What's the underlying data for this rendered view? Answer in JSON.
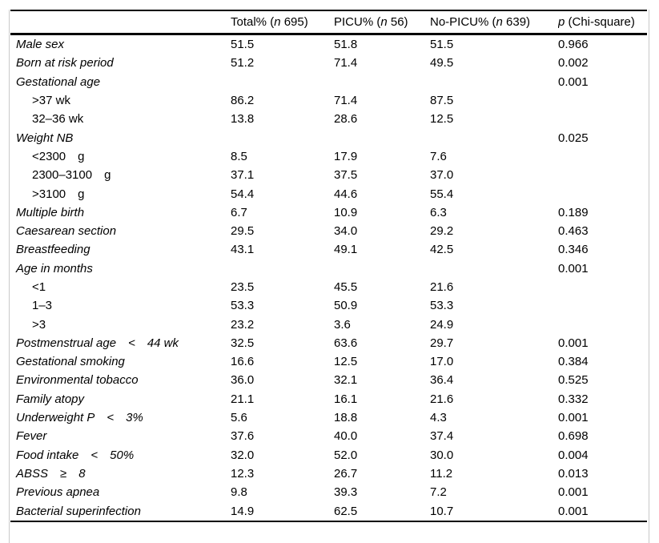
{
  "table": {
    "columns": [
      {
        "key": "total",
        "pre": "Total% (",
        "it": "n",
        "post": " 695)"
      },
      {
        "key": "picu",
        "pre": "PICU% (",
        "it": "n",
        "post": " 56)"
      },
      {
        "key": "nopicu",
        "pre": "No-PICU% (",
        "it": "n",
        "post": " 639)"
      },
      {
        "key": "p",
        "pre": "",
        "it": "p",
        "post": " (Chi-square)"
      }
    ],
    "rows": [
      {
        "label": "Male sex",
        "style": "cat",
        "values": [
          "51.5",
          "51.8",
          "51.5",
          "0.966"
        ]
      },
      {
        "label": "Born at risk period",
        "style": "cat",
        "values": [
          "51.2",
          "71.4",
          "49.5",
          "0.002"
        ]
      },
      {
        "label": "Gestational age",
        "style": "cat",
        "values": [
          "",
          "",
          "",
          "0.001"
        ]
      },
      {
        "label": ">37 wk",
        "style": "sub",
        "values": [
          "86.2",
          "71.4",
          "87.5",
          ""
        ]
      },
      {
        "label": "32–36 wk",
        "style": "sub",
        "values": [
          "13.8",
          "28.6",
          "12.5",
          ""
        ]
      },
      {
        "label": "Weight NB",
        "style": "cat",
        "values": [
          "",
          "",
          "",
          "0.025"
        ]
      },
      {
        "label": "<2300 g",
        "style": "sub",
        "values": [
          "8.5",
          "17.9",
          "7.6",
          ""
        ]
      },
      {
        "label": "2300–3100 g",
        "style": "sub",
        "values": [
          "37.1",
          "37.5",
          "37.0",
          ""
        ]
      },
      {
        "label": ">3100 g",
        "style": "sub",
        "values": [
          "54.4",
          "44.6",
          "55.4",
          ""
        ]
      },
      {
        "label": "Multiple birth",
        "style": "cat",
        "values": [
          "6.7",
          "10.9",
          "6.3",
          "0.189"
        ]
      },
      {
        "label": "Caesarean section",
        "style": "cat",
        "values": [
          "29.5",
          "34.0",
          "29.2",
          "0.463"
        ]
      },
      {
        "label": "Breastfeeding",
        "style": "cat",
        "values": [
          "43.1",
          "49.1",
          "42.5",
          "0.346"
        ]
      },
      {
        "label": "Age in months",
        "style": "cat",
        "values": [
          "",
          "",
          "",
          "0.001"
        ]
      },
      {
        "label": "<1",
        "style": "sub",
        "values": [
          "23.5",
          "45.5",
          "21.6",
          ""
        ]
      },
      {
        "label": "1–3",
        "style": "sub",
        "values": [
          "53.3",
          "50.9",
          "53.3",
          ""
        ]
      },
      {
        "label": ">3",
        "style": "sub",
        "values": [
          "23.2",
          "3.6",
          "24.9",
          ""
        ]
      },
      {
        "label": "Postmenstrual age < 44 wk",
        "style": "cat",
        "values": [
          "32.5",
          "63.6",
          "29.7",
          "0.001"
        ]
      },
      {
        "label": "Gestational smoking",
        "style": "cat",
        "values": [
          "16.6",
          "12.5",
          "17.0",
          "0.384"
        ]
      },
      {
        "label": "Environmental tobacco",
        "style": "cat",
        "values": [
          "36.0",
          "32.1",
          "36.4",
          "0.525"
        ]
      },
      {
        "label": "Family atopy",
        "style": "cat",
        "values": [
          "21.1",
          "16.1",
          "21.6",
          "0.332"
        ]
      },
      {
        "label": "Underweight P < 3%",
        "style": "cat",
        "values": [
          "5.6",
          "18.8",
          "4.3",
          "0.001"
        ]
      },
      {
        "label": "Fever",
        "style": "cat",
        "values": [
          "37.6",
          "40.0",
          "37.4",
          "0.698"
        ]
      },
      {
        "label": "Food intake < 50%",
        "style": "cat",
        "values": [
          "32.0",
          "52.0",
          "30.0",
          "0.004"
        ]
      },
      {
        "label": "ABSS ≥ 8",
        "style": "cat",
        "values": [
          "12.3",
          "26.7",
          "11.2",
          "0.013"
        ]
      },
      {
        "label": "Previous apnea",
        "style": "cat",
        "values": [
          "9.8",
          "39.3",
          "7.2",
          "0.001"
        ]
      },
      {
        "label": "Bacterial superinfection",
        "style": "cat",
        "values": [
          "14.9",
          "62.5",
          "10.7",
          "0.001"
        ]
      }
    ],
    "colors": {
      "rule": "#000000",
      "frame": "#c9c9c9",
      "text": "#000000"
    }
  }
}
